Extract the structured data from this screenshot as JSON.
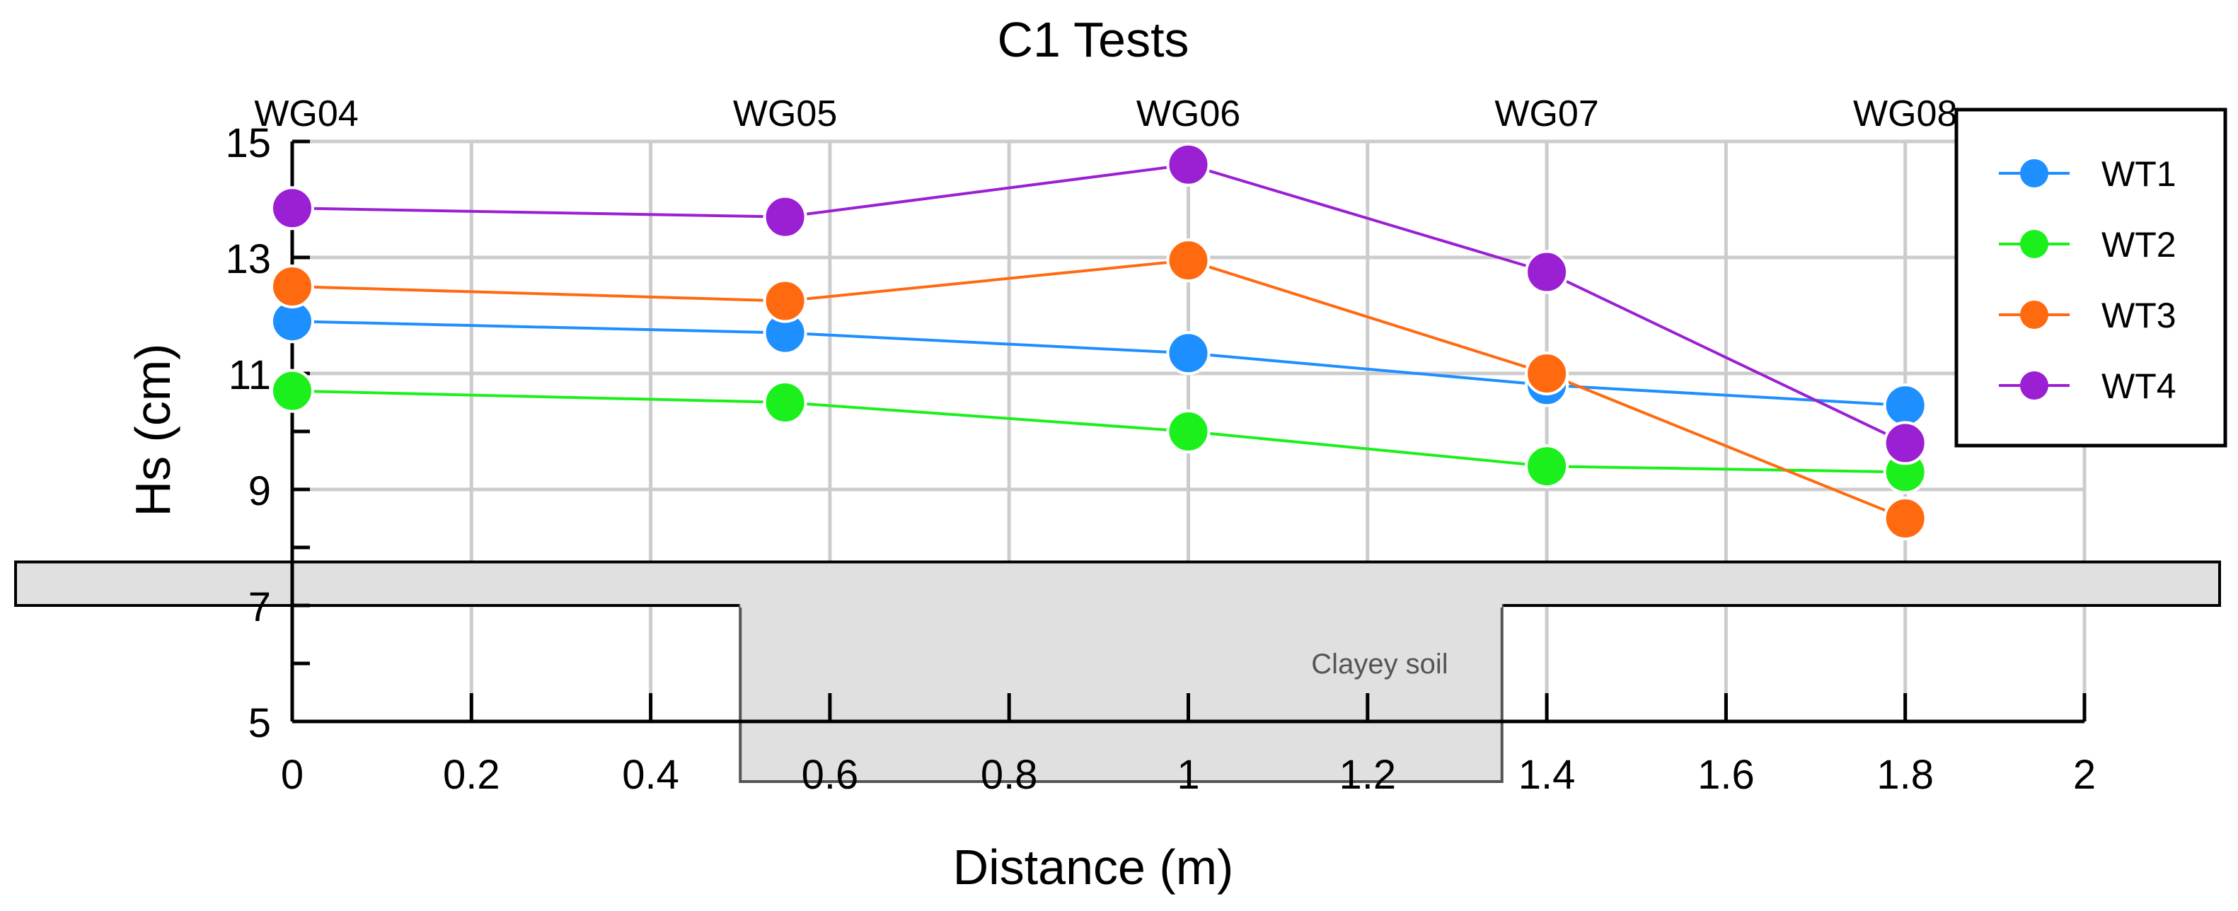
{
  "chart_data": {
    "type": "line",
    "title": "C1 Tests",
    "xlabel": "Distance (m)",
    "ylabel": "Hs (cm)",
    "xlim": [
      0,
      2
    ],
    "ylim": [
      5,
      15
    ],
    "xticks": [
      "0",
      "0.2",
      "0.4",
      "0.6",
      "0.8",
      "1",
      "1.2",
      "1.4",
      "1.6",
      "1.8",
      "2"
    ],
    "xtick_values": [
      0,
      0.2,
      0.4,
      0.6,
      0.8,
      1,
      1.2,
      1.4,
      1.6,
      1.8,
      2
    ],
    "yticks": [
      "5",
      "7",
      "9",
      "11",
      "13",
      "15"
    ],
    "ytick_values": [
      5,
      7,
      9,
      11,
      13,
      15
    ],
    "grid": true,
    "legend_position": "top-right",
    "x": [
      0,
      0.55,
      1.0,
      1.4,
      1.8
    ],
    "gauges": [
      {
        "label": "WG04",
        "x": 0
      },
      {
        "label": "WG05",
        "x": 0.55
      },
      {
        "label": "WG06",
        "x": 1.0
      },
      {
        "label": "WG07",
        "x": 1.4
      },
      {
        "label": "WG08",
        "x": 1.8
      }
    ],
    "series": [
      {
        "name": "WT1",
        "color": "#1e8fff",
        "values": [
          11.9,
          11.7,
          11.35,
          10.8,
          10.45
        ]
      },
      {
        "name": "WT2",
        "color": "#1cf01c",
        "values": [
          10.7,
          10.5,
          10.0,
          9.4,
          9.3
        ]
      },
      {
        "name": "WT3",
        "color": "#ff6a10",
        "values": [
          12.5,
          12.25,
          12.95,
          11.0,
          8.5
        ]
      },
      {
        "name": "WT4",
        "color": "#9b1fd3",
        "values": [
          13.85,
          13.7,
          14.6,
          12.75,
          9.8
        ]
      }
    ],
    "annotation": {
      "text": "Clayey soil",
      "layer_y_range": [
        7,
        7.75
      ],
      "trench_x_range": [
        0.5,
        1.35
      ],
      "trench_depth": 6.0
    }
  }
}
